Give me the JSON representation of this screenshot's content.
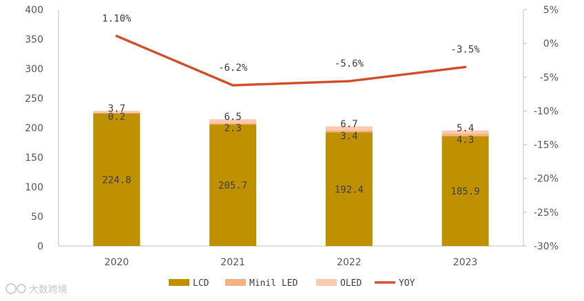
{
  "chart_data": {
    "type": "bar",
    "stacked": true,
    "categories": [
      "2020",
      "2021",
      "2022",
      "2023"
    ],
    "series": [
      {
        "name": "LCD",
        "values": [
          224.8,
          205.7,
          192.4,
          185.9
        ],
        "labels": [
          "224.8",
          "205.7",
          "192.4",
          "185.9"
        ],
        "color": "#BF9000"
      },
      {
        "name": "Minil LED",
        "values": [
          0.2,
          2.3,
          3.4,
          4.3
        ],
        "labels": [
          "0.2",
          "2.3",
          "3.4",
          "4.3"
        ],
        "color": "#F4B183"
      },
      {
        "name": "OLED",
        "values": [
          3.7,
          6.5,
          6.7,
          5.4
        ],
        "labels": [
          "3.7",
          "6.5",
          "6.7",
          "5.4"
        ],
        "color": "#F8CBAD"
      }
    ],
    "line_series": {
      "name": "YOY",
      "values": [
        1.1,
        -6.2,
        -5.6,
        -3.5
      ],
      "labels": [
        "1.10%",
        "-6.2%",
        "-5.6%",
        "-3.5%"
      ],
      "color": "#D4512A",
      "axis": "right"
    },
    "left_axis": {
      "ylim": [
        0,
        400
      ],
      "ticks": [
        "0",
        "50",
        "100",
        "150",
        "200",
        "250",
        "300",
        "350",
        "400"
      ]
    },
    "right_axis": {
      "ylim": [
        -30,
        5
      ],
      "ticks": [
        "-30%",
        "-25%",
        "-20%",
        "-15%",
        "-10%",
        "-5%",
        "0%",
        "5%"
      ]
    },
    "legend": {
      "position": "bottom",
      "items": [
        "LCD",
        "Minil LED",
        "OLED",
        "YOY"
      ]
    }
  },
  "watermark": {
    "text": "大数跨境"
  }
}
